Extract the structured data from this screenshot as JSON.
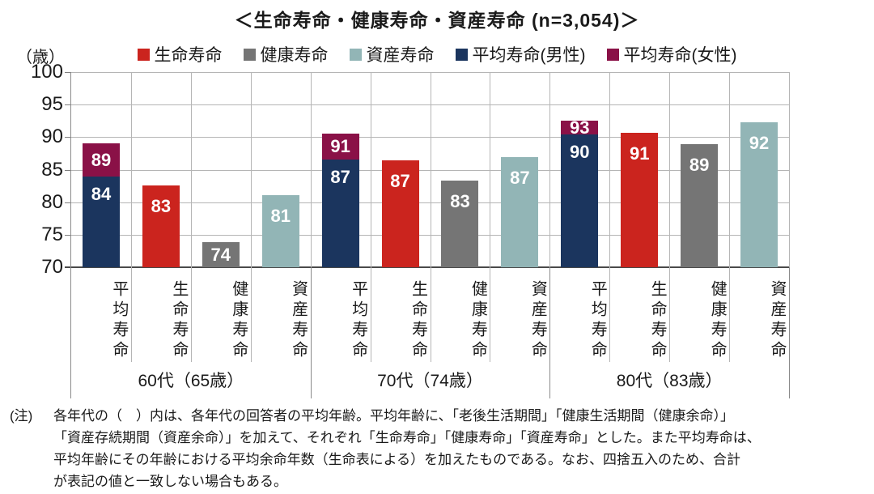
{
  "title": "＜生命寿命・健康寿命・資産寿命 (n=3,054)＞",
  "y_axis": {
    "unit": "（歳）",
    "min": 70,
    "max": 100,
    "ticks": [
      "100",
      "95",
      "90",
      "85",
      "80",
      "75",
      "70"
    ]
  },
  "legend": [
    {
      "label": "生命寿命",
      "color": "#cb241e"
    },
    {
      "label": "健康寿命",
      "color": "#757575"
    },
    {
      "label": "資産寿命",
      "color": "#92b5b6"
    },
    {
      "label": "平均寿命(男性)",
      "color": "#1b355e"
    },
    {
      "label": "平均寿命(女性)",
      "color": "#8a1147"
    }
  ],
  "chart_data": {
    "type": "bar",
    "title": "＜生命寿命・健康寿命・資産寿命 (n=3,054)＞",
    "sample_size": "n=3,054",
    "ylabel": "（歳）",
    "ylim": [
      70,
      100
    ],
    "grid": true,
    "legend_position": "top",
    "series_colors": {
      "生命寿命": "#cb241e",
      "健康寿命": "#757575",
      "資産寿命": "#92b5b6",
      "平均寿命(男性)": "#1b355e",
      "平均寿命(女性)": "#8a1147"
    },
    "groups": [
      {
        "label": "60代（65歳）",
        "bars": [
          {
            "category": "平均寿命",
            "stacked": true,
            "segments": [
              {
                "series": "平均寿命(男性)",
                "value": 84,
                "top": 83.9
              },
              {
                "series": "平均寿命(女性)",
                "value": 89,
                "top": 89.0
              }
            ]
          },
          {
            "category": "生命寿命",
            "series": "生命寿命",
            "value": 83,
            "top": 82.6
          },
          {
            "category": "健康寿命",
            "series": "健康寿命",
            "value": 74,
            "top": 73.8
          },
          {
            "category": "資産寿命",
            "series": "資産寿命",
            "value": 81,
            "top": 81.1
          }
        ]
      },
      {
        "label": "70代（74歳）",
        "bars": [
          {
            "category": "平均寿命",
            "stacked": true,
            "segments": [
              {
                "series": "平均寿命(男性)",
                "value": 87,
                "top": 86.6
              },
              {
                "series": "平均寿命(女性)",
                "value": 91,
                "top": 90.6
              }
            ]
          },
          {
            "category": "生命寿命",
            "series": "生命寿命",
            "value": 87,
            "top": 86.4
          },
          {
            "category": "健康寿命",
            "series": "健康寿命",
            "value": 83,
            "top": 83.3
          },
          {
            "category": "資産寿命",
            "series": "資産寿命",
            "value": 87,
            "top": 86.9
          }
        ]
      },
      {
        "label": "80代（83歳）",
        "bars": [
          {
            "category": "平均寿命",
            "stacked": true,
            "segments": [
              {
                "series": "平均寿命(男性)",
                "value": 90,
                "top": 90.4
              },
              {
                "series": "平均寿命(女性)",
                "value": 93,
                "top": 92.5
              }
            ]
          },
          {
            "category": "生命寿命",
            "series": "生命寿命",
            "value": 91,
            "top": 90.7
          },
          {
            "category": "健康寿命",
            "series": "健康寿命",
            "value": 89,
            "top": 88.9
          },
          {
            "category": "資産寿命",
            "series": "資産寿命",
            "value": 92,
            "top": 92.3
          }
        ]
      }
    ]
  },
  "note": {
    "prefix": "(注)",
    "lines": [
      "各年代の（　）内は、各年代の回答者の平均年齢。平均年齢に、「老後生活期間」「健康生活期間（健康余命）」",
      "「資産存続期間（資産余命）」を加えて、それぞれ「生命寿命」「健康寿命」「資産寿命」とした。また平均寿命は、",
      "平均年齢にその年齢における平均余命年数（生命表による）を加えたものである。なお、四捨五入のため、合計",
      "が表記の値と一致しない場合もある。"
    ]
  }
}
